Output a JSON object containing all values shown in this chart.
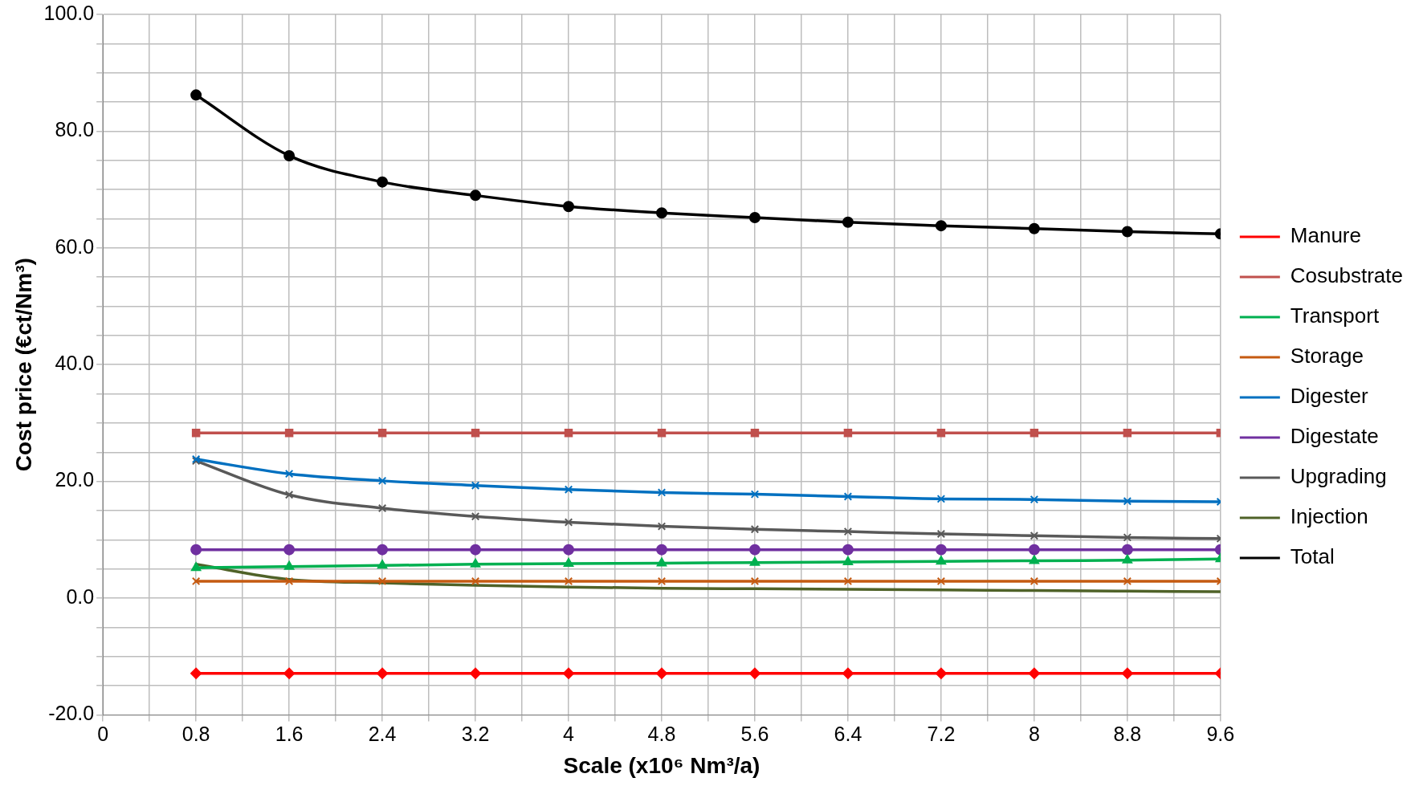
{
  "chart_data": {
    "type": "line",
    "xlabel": "Scale (x10⁶ Nm³/a)",
    "ylabel": "Cost price (€ct/Nm³)",
    "x": [
      0.8,
      1.6,
      2.4,
      3.2,
      4,
      4.8,
      5.6,
      6.4,
      7.2,
      8,
      8.8,
      9.6
    ],
    "xlim": [
      0,
      9.6
    ],
    "xticks": [
      0,
      {
        "value": 0.4,
        "label": null
      },
      0.8,
      {
        "value": 1.2,
        "label": null
      },
      1.6,
      {
        "value": 2,
        "label": null
      },
      2.4,
      {
        "value": 2.8,
        "label": null
      },
      3.2,
      {
        "value": 3.6,
        "label": null
      },
      4,
      {
        "value": 4.4,
        "label": null
      },
      4.8,
      {
        "value": 5.2,
        "label": null
      },
      5.6,
      {
        "value": 6,
        "label": null
      },
      6.4,
      {
        "value": 6.8,
        "label": null
      },
      7.2,
      {
        "value": 7.6,
        "label": null
      },
      8,
      {
        "value": 8.4,
        "label": null
      },
      8.8,
      {
        "value": 9.2,
        "label": null
      },
      9.6
    ],
    "ylim": [
      -20,
      100
    ],
    "yticks": [
      {
        "value": -20,
        "label": "-20.0"
      },
      {
        "value": -15,
        "label": null
      },
      {
        "value": -10,
        "label": null
      },
      {
        "value": -5,
        "label": null
      },
      {
        "value": 0,
        "label": "0.0"
      },
      {
        "value": 5,
        "label": null
      },
      {
        "value": 10,
        "label": null
      },
      {
        "value": 15,
        "label": null
      },
      {
        "value": 20,
        "label": "20.0"
      },
      {
        "value": 25,
        "label": null
      },
      {
        "value": 30,
        "label": null
      },
      {
        "value": 35,
        "label": null
      },
      {
        "value": 40,
        "label": "40.0"
      },
      {
        "value": 45,
        "label": null
      },
      {
        "value": 50,
        "label": null
      },
      {
        "value": 55,
        "label": null
      },
      {
        "value": 60,
        "label": "60.0"
      },
      {
        "value": 65,
        "label": null
      },
      {
        "value": 70,
        "label": null
      },
      {
        "value": 75,
        "label": null
      },
      {
        "value": 80,
        "label": "80.0"
      },
      {
        "value": 85,
        "label": null
      },
      {
        "value": 90,
        "label": null
      },
      {
        "value": 95,
        "label": null
      },
      {
        "value": 100,
        "label": "100.0"
      }
    ],
    "grid": true,
    "legend": "right",
    "line_style": "solid",
    "series": [
      {
        "name": "Manure",
        "color": "#ff0000",
        "marker": "diamond",
        "values": [
          -12.9,
          -12.9,
          -12.9,
          -12.9,
          -12.9,
          -12.9,
          -12.9,
          -12.9,
          -12.9,
          -12.9,
          -12.9,
          -12.9
        ]
      },
      {
        "name": "Cosubstrate",
        "color": "#c0504d",
        "marker": "square",
        "values": [
          28.3,
          28.3,
          28.3,
          28.3,
          28.3,
          28.3,
          28.3,
          28.3,
          28.3,
          28.3,
          28.3,
          28.3
        ]
      },
      {
        "name": "Transport",
        "color": "#00b050",
        "marker": "triangle",
        "values": [
          5.2,
          5.4,
          5.6,
          5.8,
          5.9,
          6.0,
          6.1,
          6.2,
          6.3,
          6.4,
          6.5,
          6.7
        ]
      },
      {
        "name": "Storage",
        "color": "#c55a11",
        "marker": "cross",
        "values": [
          2.9,
          2.9,
          2.9,
          2.9,
          2.9,
          2.9,
          2.9,
          2.9,
          2.9,
          2.9,
          2.9,
          2.9
        ]
      },
      {
        "name": "Digester",
        "color": "#0070c0",
        "marker": "cross",
        "values": [
          23.8,
          21.3,
          20.1,
          19.3,
          18.6,
          18.1,
          17.8,
          17.4,
          17.0,
          16.9,
          16.6,
          16.5
        ]
      },
      {
        "name": "Digestate",
        "color": "#7030a0",
        "marker": "circle",
        "values": [
          8.3,
          8.3,
          8.3,
          8.3,
          8.3,
          8.3,
          8.3,
          8.3,
          8.3,
          8.3,
          8.3,
          8.3
        ]
      },
      {
        "name": "Upgrading",
        "color": "#595959",
        "marker": "cross",
        "values": [
          23.5,
          17.7,
          15.4,
          14.0,
          13.0,
          12.3,
          11.8,
          11.4,
          11.0,
          10.7,
          10.4,
          10.2
        ]
      },
      {
        "name": "Injection",
        "color": "#4f6228",
        "marker": "none",
        "values": [
          5.8,
          3.2,
          2.6,
          2.2,
          1.9,
          1.7,
          1.6,
          1.5,
          1.4,
          1.3,
          1.2,
          1.1
        ]
      },
      {
        "name": "Total",
        "color": "#000000",
        "marker": "circle",
        "values": [
          86.2,
          75.8,
          71.3,
          69.0,
          67.1,
          66.0,
          65.2,
          64.4,
          63.8,
          63.3,
          62.8,
          62.4
        ]
      }
    ]
  }
}
